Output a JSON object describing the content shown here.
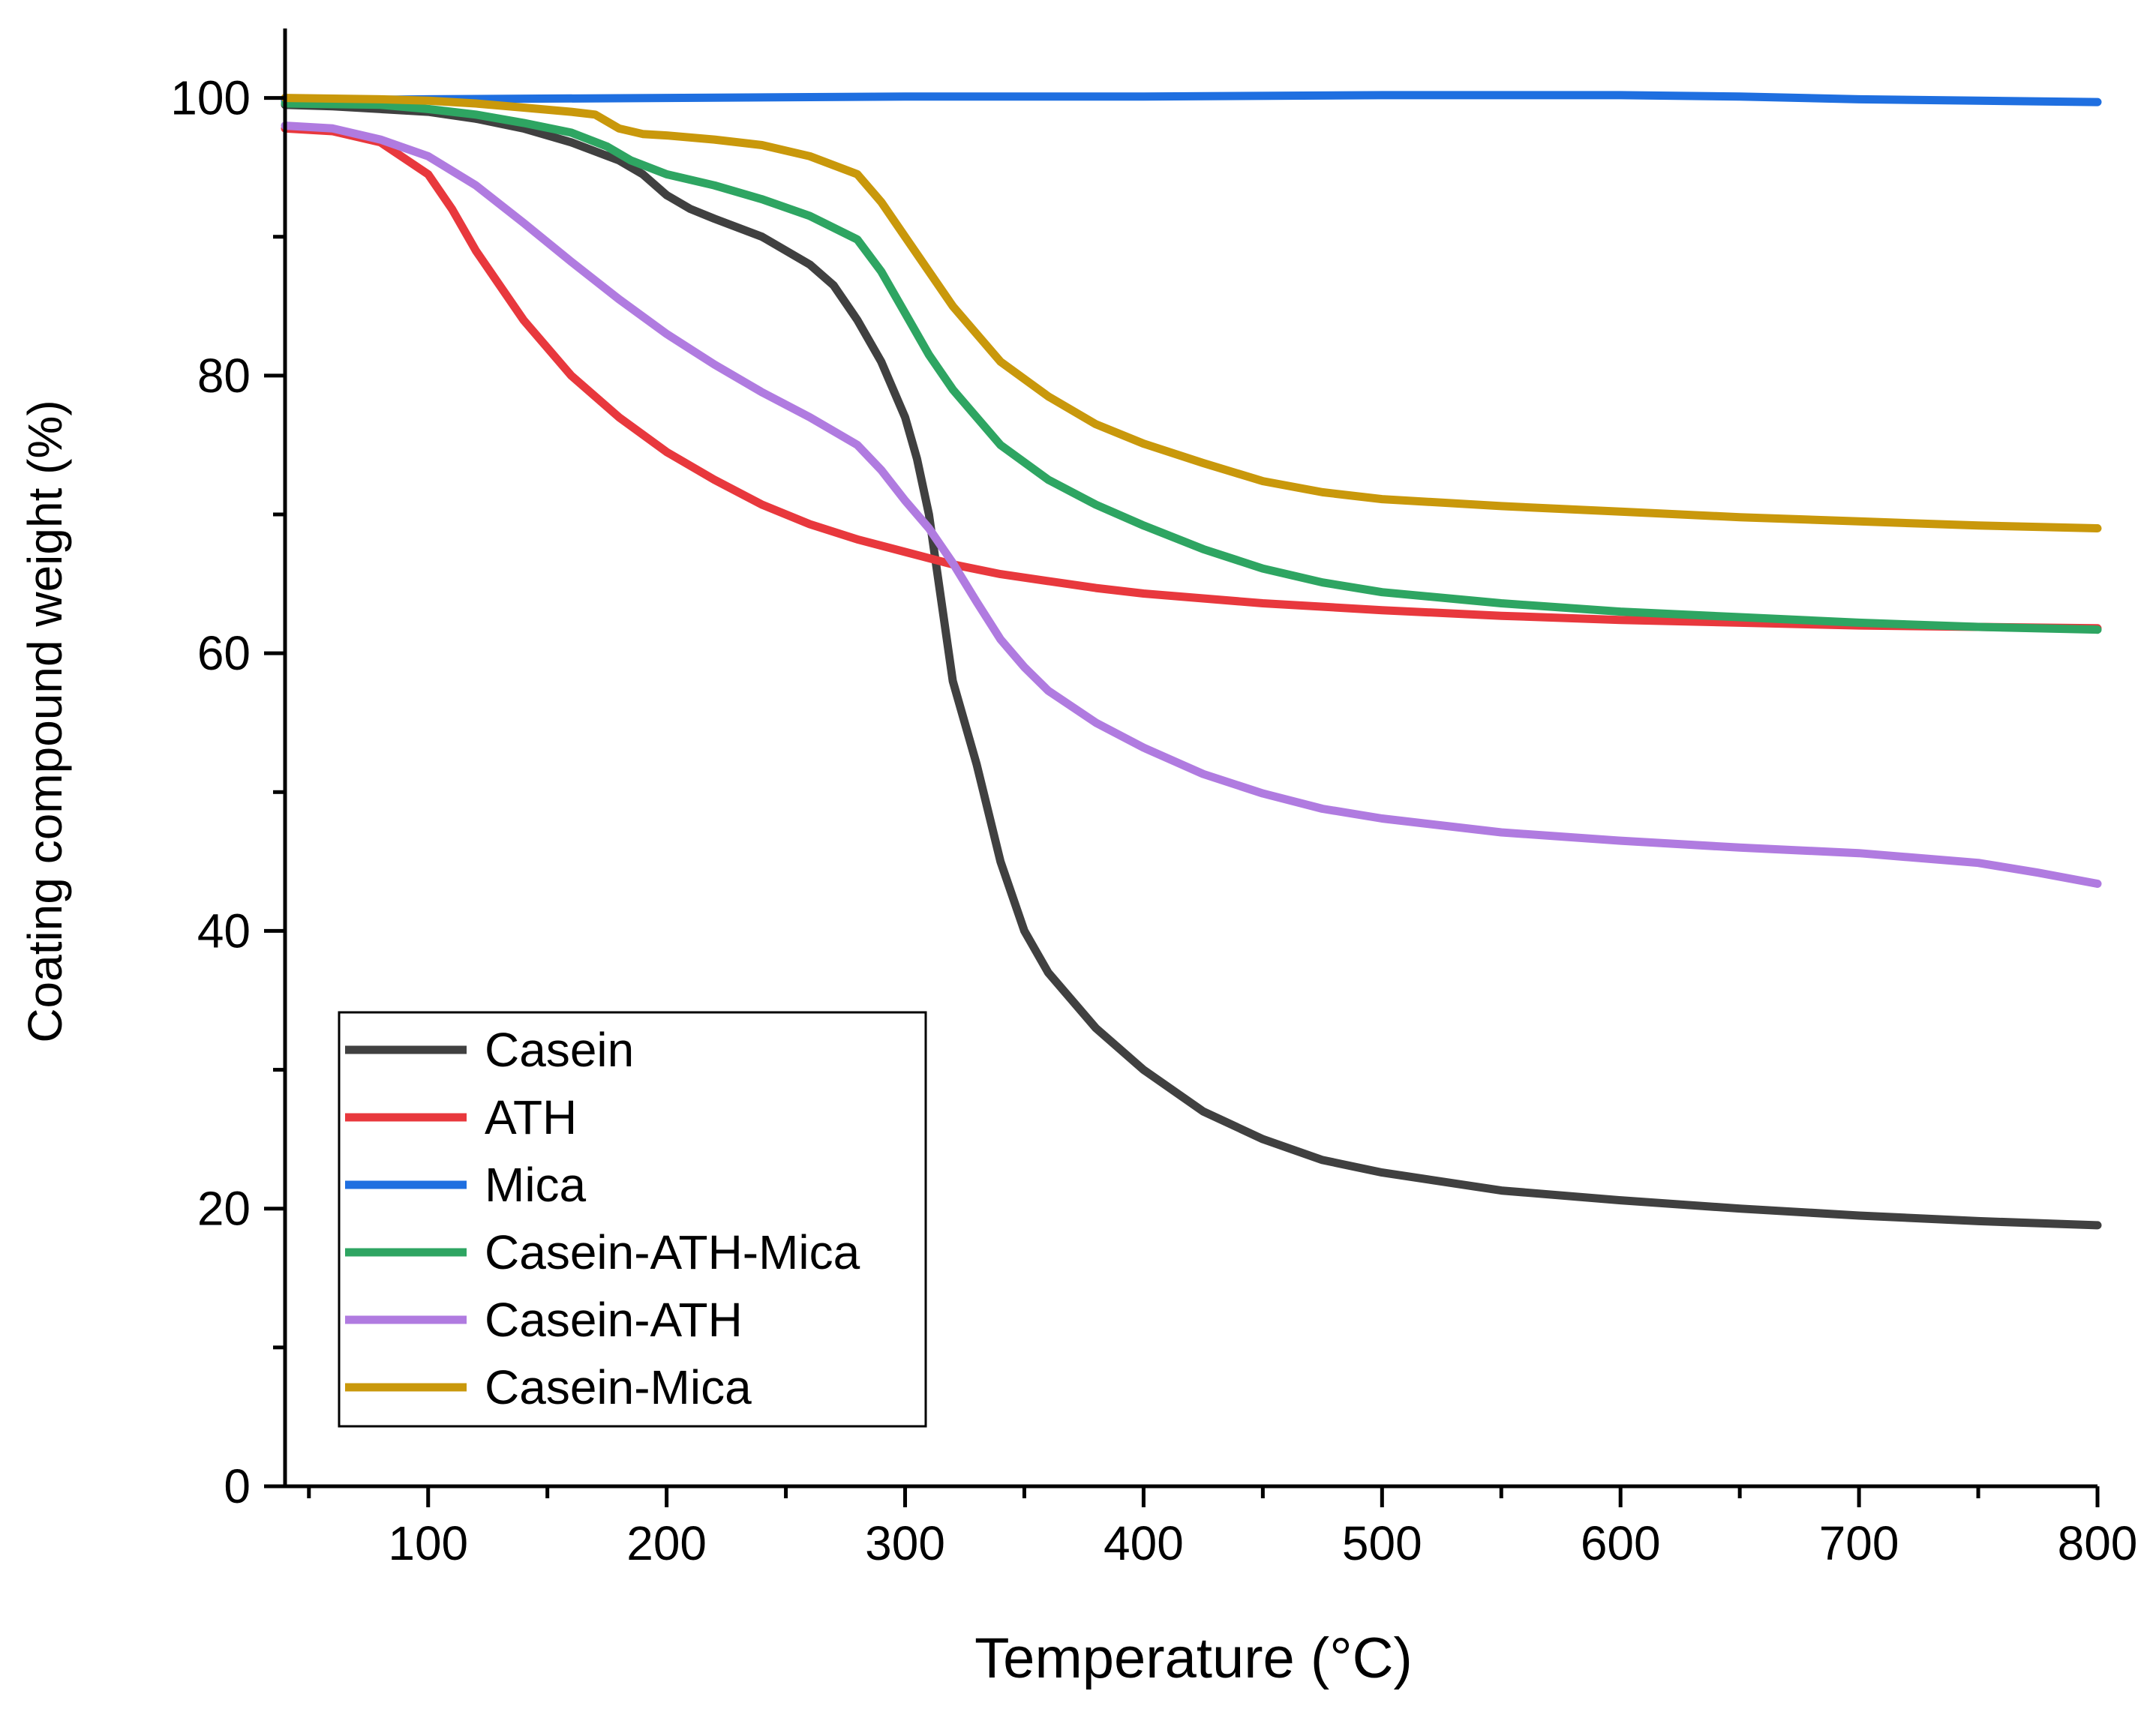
{
  "chart_data": {
    "type": "line",
    "title": "",
    "xlabel": "Temperature (°C)",
    "ylabel": "Coating compound weight (%)",
    "xlim": [
      40,
      800
    ],
    "ylim": [
      0,
      105
    ],
    "x_ticks": [
      100,
      200,
      300,
      400,
      500,
      600,
      700,
      800
    ],
    "x_tick_labels": [
      "100",
      "200",
      "300",
      "400",
      "500",
      "600",
      "700",
      "800"
    ],
    "y_ticks": [
      0,
      20,
      40,
      60,
      80,
      100
    ],
    "y_tick_labels": [
      "0",
      "20",
      "40",
      "60",
      "80",
      "100"
    ],
    "grid": false,
    "legend_position": "bottom-left",
    "series": [
      {
        "name": "Casein",
        "color": "#404040",
        "points": [
          [
            40,
            99.5
          ],
          [
            60,
            99.4
          ],
          [
            80,
            99.2
          ],
          [
            100,
            99
          ],
          [
            120,
            98.5
          ],
          [
            140,
            97.8
          ],
          [
            160,
            96.8
          ],
          [
            180,
            95.5
          ],
          [
            190,
            94.5
          ],
          [
            200,
            93
          ],
          [
            210,
            92
          ],
          [
            220,
            91.3
          ],
          [
            240,
            90
          ],
          [
            260,
            88
          ],
          [
            270,
            86.5
          ],
          [
            280,
            84
          ],
          [
            290,
            81
          ],
          [
            300,
            77
          ],
          [
            305,
            74
          ],
          [
            310,
            70
          ],
          [
            315,
            64
          ],
          [
            320,
            58
          ],
          [
            330,
            52
          ],
          [
            340,
            45
          ],
          [
            350,
            40
          ],
          [
            360,
            37
          ],
          [
            380,
            33
          ],
          [
            400,
            30
          ],
          [
            425,
            27
          ],
          [
            450,
            25
          ],
          [
            475,
            23.5
          ],
          [
            500,
            22.6
          ],
          [
            550,
            21.3
          ],
          [
            600,
            20.6
          ],
          [
            650,
            20
          ],
          [
            700,
            19.5
          ],
          [
            750,
            19.1
          ],
          [
            800,
            18.8
          ]
        ]
      },
      {
        "name": "ATH",
        "color": "#e8383d",
        "points": [
          [
            40,
            97.8
          ],
          [
            60,
            97.6
          ],
          [
            80,
            96.8
          ],
          [
            100,
            94.5
          ],
          [
            110,
            92
          ],
          [
            120,
            89
          ],
          [
            140,
            84
          ],
          [
            160,
            80
          ],
          [
            180,
            77
          ],
          [
            200,
            74.5
          ],
          [
            220,
            72.5
          ],
          [
            240,
            70.7
          ],
          [
            260,
            69.3
          ],
          [
            280,
            68.2
          ],
          [
            300,
            67.3
          ],
          [
            320,
            66.4
          ],
          [
            340,
            65.7
          ],
          [
            360,
            65.2
          ],
          [
            380,
            64.7
          ],
          [
            400,
            64.3
          ],
          [
            450,
            63.6
          ],
          [
            500,
            63.1
          ],
          [
            550,
            62.7
          ],
          [
            600,
            62.4
          ],
          [
            650,
            62.2
          ],
          [
            700,
            62
          ],
          [
            750,
            61.9
          ],
          [
            800,
            61.8
          ]
        ]
      },
      {
        "name": "Mica",
        "color": "#1f6fe0",
        "points": [
          [
            40,
            99.8
          ],
          [
            100,
            99.9
          ],
          [
            200,
            100
          ],
          [
            300,
            100.1
          ],
          [
            400,
            100.1
          ],
          [
            500,
            100.2
          ],
          [
            600,
            100.2
          ],
          [
            650,
            100.1
          ],
          [
            700,
            99.9
          ],
          [
            750,
            99.8
          ],
          [
            800,
            99.7
          ]
        ]
      },
      {
        "name": "Casein-ATH-Mica",
        "color": "#2ea562",
        "points": [
          [
            40,
            99.6
          ],
          [
            80,
            99.5
          ],
          [
            100,
            99.2
          ],
          [
            120,
            98.8
          ],
          [
            140,
            98.2
          ],
          [
            160,
            97.5
          ],
          [
            175,
            96.5
          ],
          [
            185,
            95.5
          ],
          [
            200,
            94.5
          ],
          [
            220,
            93.7
          ],
          [
            240,
            92.7
          ],
          [
            260,
            91.5
          ],
          [
            280,
            89.8
          ],
          [
            290,
            87.5
          ],
          [
            300,
            84.5
          ],
          [
            310,
            81.5
          ],
          [
            320,
            79
          ],
          [
            330,
            77
          ],
          [
            340,
            75
          ],
          [
            360,
            72.5
          ],
          [
            380,
            70.7
          ],
          [
            400,
            69.2
          ],
          [
            425,
            67.5
          ],
          [
            450,
            66.1
          ],
          [
            475,
            65.1
          ],
          [
            500,
            64.4
          ],
          [
            550,
            63.6
          ],
          [
            600,
            63
          ],
          [
            650,
            62.6
          ],
          [
            700,
            62.2
          ],
          [
            750,
            61.9
          ],
          [
            800,
            61.7
          ]
        ]
      },
      {
        "name": "Casein-ATH",
        "color": "#b07be0",
        "points": [
          [
            40,
            98
          ],
          [
            60,
            97.8
          ],
          [
            80,
            97
          ],
          [
            100,
            95.8
          ],
          [
            120,
            93.7
          ],
          [
            140,
            91
          ],
          [
            160,
            88.2
          ],
          [
            180,
            85.5
          ],
          [
            200,
            83
          ],
          [
            220,
            80.8
          ],
          [
            240,
            78.8
          ],
          [
            260,
            77
          ],
          [
            280,
            75
          ],
          [
            290,
            73.2
          ],
          [
            300,
            71
          ],
          [
            310,
            69
          ],
          [
            320,
            66.5
          ],
          [
            330,
            63.7
          ],
          [
            340,
            61
          ],
          [
            350,
            59
          ],
          [
            360,
            57.3
          ],
          [
            380,
            55
          ],
          [
            400,
            53.2
          ],
          [
            425,
            51.3
          ],
          [
            450,
            49.9
          ],
          [
            475,
            48.8
          ],
          [
            500,
            48.1
          ],
          [
            550,
            47.1
          ],
          [
            600,
            46.5
          ],
          [
            650,
            46
          ],
          [
            700,
            45.6
          ],
          [
            750,
            44.9
          ],
          [
            775,
            44.2
          ],
          [
            800,
            43.4
          ]
        ]
      },
      {
        "name": "Casein-Mica",
        "color": "#c9980b",
        "points": [
          [
            40,
            100
          ],
          [
            80,
            99.9
          ],
          [
            100,
            99.8
          ],
          [
            120,
            99.6
          ],
          [
            140,
            99.3
          ],
          [
            160,
            99
          ],
          [
            170,
            98.8
          ],
          [
            180,
            97.8
          ],
          [
            190,
            97.4
          ],
          [
            200,
            97.3
          ],
          [
            220,
            97
          ],
          [
            240,
            96.6
          ],
          [
            260,
            95.8
          ],
          [
            280,
            94.5
          ],
          [
            290,
            92.5
          ],
          [
            300,
            90
          ],
          [
            310,
            87.5
          ],
          [
            320,
            85
          ],
          [
            330,
            83
          ],
          [
            340,
            81
          ],
          [
            360,
            78.5
          ],
          [
            380,
            76.5
          ],
          [
            400,
            75.1
          ],
          [
            425,
            73.7
          ],
          [
            450,
            72.4
          ],
          [
            475,
            71.6
          ],
          [
            500,
            71.1
          ],
          [
            550,
            70.6
          ],
          [
            600,
            70.2
          ],
          [
            650,
            69.8
          ],
          [
            700,
            69.5
          ],
          [
            750,
            69.2
          ],
          [
            800,
            69
          ]
        ]
      }
    ]
  }
}
